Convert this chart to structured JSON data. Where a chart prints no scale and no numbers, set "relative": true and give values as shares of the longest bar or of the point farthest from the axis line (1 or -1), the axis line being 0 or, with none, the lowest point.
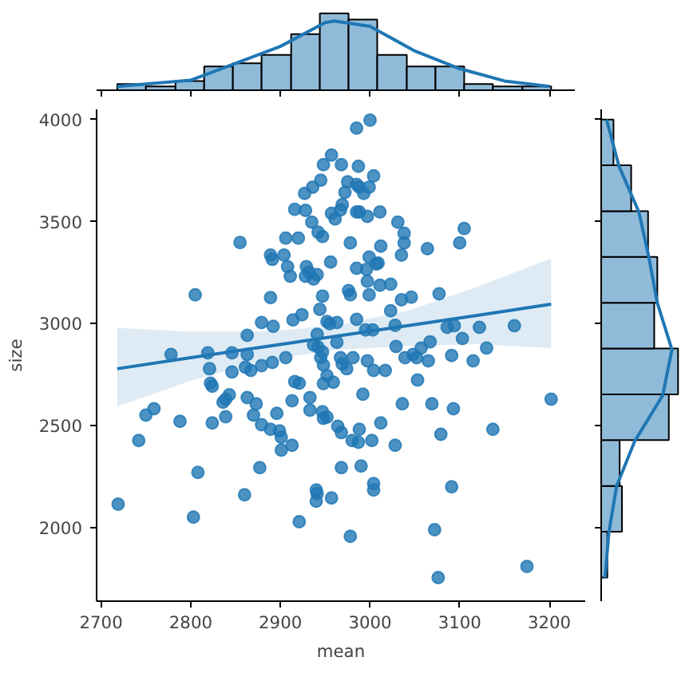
{
  "chart_data": [
    {
      "type": "histogram",
      "relative": true,
      "color": "#8fbbd9",
      "bins": [
        2718,
        2750,
        2783,
        2815,
        2847,
        2879,
        2912,
        2944,
        2976,
        3008,
        3041,
        3073,
        3105,
        3137,
        3170,
        3202
      ],
      "values": [
        0.08,
        0.05,
        0.12,
        0.31,
        0.35,
        0.46,
        0.73,
        1,
        0.92,
        0.46,
        0.31,
        0.31,
        0.08,
        0.05,
        0.05
      ],
      "series": [
        {
          "type": "line",
          "color": "#1f77b4",
          "x": [
            2718,
            2800,
            2850,
            2900,
            2950,
            2960,
            3000,
            3050,
            3100,
            3150,
            3200
          ],
          "values": [
            0.05,
            0.13,
            0.35,
            0.57,
            0.88,
            0.9,
            0.83,
            0.51,
            0.28,
            0.12,
            0.05
          ]
        }
      ],
      "xlim": [
        2695,
        3240
      ],
      "xticks": [
        2700,
        2800,
        2900,
        3000,
        3100,
        3200
      ],
      "tick_labels": false,
      "grid": false
    },
    {
      "type": "scatter",
      "xlabel": "mean",
      "ylabel": "size",
      "grid": false,
      "xlim": [
        2695,
        3240
      ],
      "ylim": [
        1640,
        4050
      ],
      "xticks": [
        2700,
        2800,
        2900,
        3000,
        3100,
        3200
      ],
      "yticks": [
        2000,
        2500,
        3000,
        3500,
        4000
      ],
      "series": [
        {
          "type": "scatter",
          "color": "#1f77b4",
          "marker": "circle",
          "x": [
            2948,
            2945,
            2936,
            2927,
            2916,
            2928,
            2935,
            2855,
            2906,
            2920,
            2942,
            2947,
            2889,
            2891,
            2904,
            2908,
            2911,
            2929,
            2928,
            2932,
            2937,
            2941,
            2805,
            2889,
            2947,
            2944,
            2924,
            2914,
            2879,
            2892,
            2863,
            2941,
            3000,
            2985,
            2957,
            2968,
            2987,
            3004,
            2975,
            2985,
            2988,
            2999,
            2972,
            2993,
            2969,
            2967,
            2957,
            2961,
            2985,
            2988,
            2997,
            3011,
            3031,
            3038,
            3038,
            3105,
            3100,
            3064,
            2978,
            3012,
            3035,
            2999,
            2956,
            2996,
            2985,
            3007,
            3009,
            2997,
            3011,
            3023,
            2976,
            2978,
            2999,
            3035,
            3046,
            3077,
            3023,
            2952,
            2955,
            2963,
            2985,
            3028,
            2995,
            3003,
            3086,
            3094,
            3122,
            3161,
            2778,
            2819,
            2846,
            2863,
            2821,
            2846,
            2861,
            2867,
            2879,
            2891,
            2906,
            2942,
            2945,
            2937,
            2822,
            2824,
            2836,
            2839,
            2843,
            2750,
            2759,
            2788,
            2824,
            2839,
            2742,
            2863,
            2873,
            2870,
            2879,
            2896,
            2889,
            2899,
            2901,
            2901,
            2913,
            2913,
            2916,
            2921,
            2933,
            2933,
            2947,
            2948,
            2808,
            2877,
            2860,
            2803,
            2719,
            2921,
            2940,
            2941,
            2940,
            2948,
            2948,
            2947,
            2963,
            3103,
            3067,
            3029,
            3130,
            2967,
            2981,
            2969,
            2974,
            2997,
            3004,
            3017,
            3039,
            3048,
            3052,
            3057,
            3065,
            3091,
            3115,
            3053,
            2952,
            2959,
            2992,
            3036,
            3069,
            3093,
            3202,
            2952,
            2964,
            2968,
            2988,
            3012,
            2980,
            2987,
            3002,
            3028,
            3079,
            3137,
            2968,
            2990,
            3004,
            3004,
            3091,
            2957,
            2978,
            3072,
            3076,
            3175
          ],
          "values": [
            3779,
            3703,
            3669,
            3638,
            3560,
            3555,
            3497,
            3398,
            3419,
            3419,
            3448,
            3427,
            3336,
            3315,
            3336,
            3279,
            3232,
            3279,
            3232,
            3253,
            3219,
            3240,
            3141,
            3128,
            3135,
            3070,
            3044,
            3018,
            3005,
            2987,
            2943,
            2948,
            3997,
            3958,
            3826,
            3779,
            3771,
            3724,
            3695,
            3682,
            3669,
            3669,
            3643,
            3638,
            3583,
            3557,
            3540,
            3513,
            3547,
            3547,
            3526,
            3547,
            3497,
            3443,
            3396,
            3466,
            3396,
            3367,
            3396,
            3380,
            3336,
            3326,
            3302,
            3266,
            3271,
            3292,
            3297,
            3208,
            3188,
            3193,
            3162,
            3141,
            3141,
            3117,
            3130,
            3146,
            3063,
            3010,
            3000,
            3005,
            3021,
            2992,
            2969,
            2969,
            2982,
            2990,
            2982,
            2990,
            2849,
            2857,
            2857,
            2849,
            2779,
            2763,
            2786,
            2771,
            2794,
            2810,
            2833,
            2885,
            2833,
            2896,
            2708,
            2693,
            2615,
            2630,
            2651,
            2552,
            2583,
            2521,
            2513,
            2544,
            2427,
            2638,
            2607,
            2552,
            2505,
            2560,
            2482,
            2474,
            2443,
            2380,
            2404,
            2622,
            2716,
            2708,
            2638,
            2576,
            2568,
            2536,
            2271,
            2294,
            2161,
            2052,
            2115,
            2029,
            2185,
            2167,
            2130,
            2797,
            2706,
            2862,
            2909,
            2927,
            2911,
            2888,
            2880,
            2833,
            2833,
            2802,
            2779,
            2818,
            2771,
            2771,
            2833,
            2849,
            2833,
            2880,
            2818,
            2844,
            2818,
            2724,
            2745,
            2713,
            2654,
            2607,
            2607,
            2583,
            2630,
            2542,
            2497,
            2466,
            2482,
            2513,
            2427,
            2419,
            2427,
            2404,
            2458,
            2482,
            2294,
            2302,
            2216,
            2185,
            2200,
            2146,
            1958,
            1990,
            1755,
            1810
          ]
        },
        {
          "type": "line",
          "color": "#1f77b4",
          "x": [
            2718,
            2800,
            2880,
            2960,
            3040,
            3120,
            3202
          ],
          "values": [
            2779,
            2833,
            2885,
            2937,
            2989,
            3041,
            3095
          ],
          "lower": [
            2594,
            2720,
            2820,
            2870,
            2890,
            2900,
            2880
          ],
          "upper": [
            2979,
            2960,
            2960,
            2990,
            3060,
            3180,
            3320
          ]
        }
      ]
    },
    {
      "type": "histogram",
      "orientation": "horizontal",
      "relative": true,
      "color": "#8fbbd9",
      "bins": [
        1755,
        1980,
        2204,
        2429,
        2653,
        2878,
        3102,
        3327,
        3551,
        3776,
        4000
      ],
      "values": [
        0.08,
        0.27,
        0.24,
        0.88,
        1,
        0.69,
        0.73,
        0.61,
        0.39,
        0.16
      ],
      "series": [
        {
          "type": "line",
          "color": "#1f77b4",
          "x": [
            1755,
            1977,
            2203,
            2427,
            2648,
            2873,
            3102,
            3326,
            3547,
            3773,
            4000
          ],
          "values": [
            0.05,
            0.1,
            0.2,
            0.44,
            0.8,
            0.92,
            0.73,
            0.62,
            0.49,
            0.23,
            0.07
          ]
        }
      ],
      "ylim": [
        1640,
        4050
      ],
      "yticks": [
        2000,
        2500,
        3000,
        3500,
        4000
      ],
      "tick_labels": false,
      "grid": false
    }
  ]
}
